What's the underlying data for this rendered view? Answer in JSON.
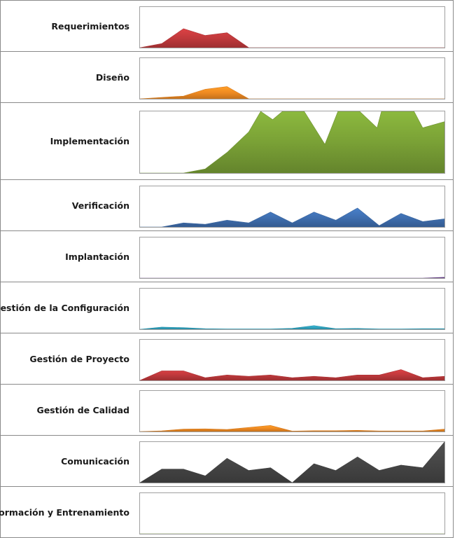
{
  "chart_data": {
    "type": "area",
    "x": [
      1,
      2,
      3,
      4,
      5,
      6,
      7,
      8,
      9,
      10,
      11,
      12,
      13,
      14,
      15
    ],
    "series": [
      {
        "name": "Requerimientos",
        "color": "#c0393c",
        "ymax": 30,
        "values": [
          0,
          3,
          14,
          9,
          11,
          0,
          0,
          0,
          0,
          0,
          0,
          0,
          0,
          0,
          0
        ]
      },
      {
        "name": "Diseño",
        "color": "#ef8a22",
        "ymax": 30,
        "values": [
          0,
          1,
          2,
          7,
          9,
          0,
          0,
          0,
          0,
          0,
          0,
          0,
          0,
          0,
          0
        ]
      },
      {
        "name": "Implementación",
        "color": "#7aa136",
        "ymax": 30,
        "values": [
          0,
          0,
          0,
          2,
          10,
          20,
          30,
          26,
          30,
          30,
          14,
          30,
          30,
          22,
          30,
          30,
          22,
          25
        ],
        "x": [
          1,
          2,
          3,
          4,
          5,
          6,
          6.55,
          7.1,
          7.55,
          8.55,
          9.5,
          10.1,
          11.1,
          11.9,
          12.1,
          13.6,
          14,
          15
        ]
      },
      {
        "name": "Verificación",
        "color": "#3f6fb0",
        "ymax": 30,
        "values": [
          0,
          0,
          3,
          2,
          5,
          3,
          11,
          3,
          11,
          5,
          14,
          1,
          10,
          4,
          6
        ]
      },
      {
        "name": "Implantación",
        "color": "#6a3f8c",
        "ymax": 30,
        "values": [
          0,
          0,
          0,
          0,
          0,
          0,
          0,
          0,
          0,
          0,
          0,
          0,
          0,
          0,
          0.6
        ]
      },
      {
        "name": "Gestión de la Configuración",
        "color": "#31a4c0",
        "ymax": 30,
        "values": [
          0,
          1.6,
          1.2,
          0.4,
          0.2,
          0.2,
          0.2,
          0.7,
          2.7,
          0.4,
          0.6,
          0.2,
          0.2,
          0.4,
          0.4
        ]
      },
      {
        "name": "Gestión de Proyecto",
        "color": "#c0393c",
        "ymax": 30,
        "values": [
          0,
          7,
          7,
          2,
          4,
          3,
          4,
          2,
          3,
          2,
          4,
          4,
          8,
          2,
          3
        ]
      },
      {
        "name": "Gestión de Calidad",
        "color": "#ef8a22",
        "ymax": 30,
        "values": [
          0,
          0.5,
          1.8,
          2,
          1.5,
          3,
          4.5,
          0.3,
          0.6,
          0.6,
          0.9,
          0.4,
          0.4,
          0.4,
          1.8
        ]
      },
      {
        "name": "Comunicación",
        "color": "#464646",
        "ymax": 30,
        "values": [
          0,
          10,
          10,
          5,
          18,
          9,
          11,
          0,
          14,
          9,
          19,
          9,
          13,
          11,
          30
        ]
      },
      {
        "name": "Formación y Entrenamiento",
        "color": "#7aa136",
        "ymax": 30,
        "values": [
          0,
          0,
          0,
          0,
          0,
          0,
          0,
          0,
          0,
          0,
          0,
          0,
          0,
          0,
          0
        ]
      }
    ],
    "grid": false,
    "legend": "none"
  },
  "rows": [
    {
      "label": "Requerimientos"
    },
    {
      "label": "Diseño"
    },
    {
      "label": "Implementación"
    },
    {
      "label": "Verificación"
    },
    {
      "label": "Implantación"
    },
    {
      "label": "Gestión de la Configuración"
    },
    {
      "label": "Gestión de Proyecto"
    },
    {
      "label": "Gestión de Calidad"
    },
    {
      "label": "Comunicación"
    },
    {
      "label": "Formación y Entrenamiento"
    }
  ]
}
